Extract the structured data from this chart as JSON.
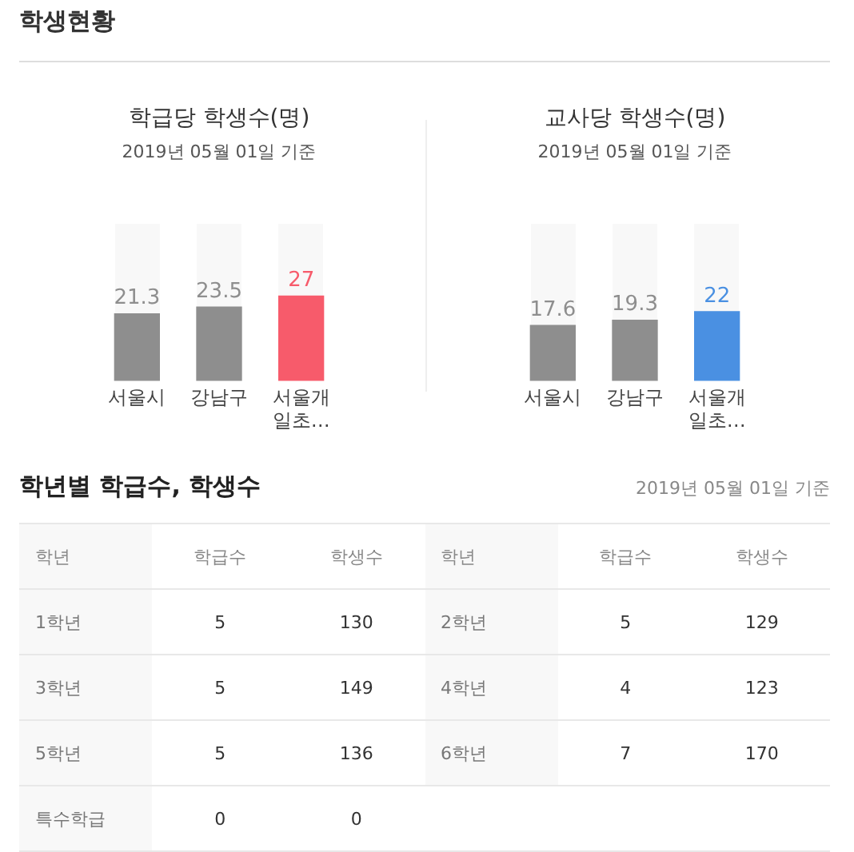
{
  "chart_data": [
    {
      "type": "other",
      "title": "학생현황"
    },
    {
      "type": "bar",
      "title": "학급당 학생수(명)",
      "subtitle": "2019년 05월 01일 기준",
      "categories": [
        "서울시",
        "강남구",
        "서울개일초…"
      ],
      "values": [
        21.3,
        23.5,
        27
      ],
      "colors": [
        "#8e8e8e",
        "#8e8e8e",
        "#f75b6b"
      ],
      "ylim": [
        0,
        50
      ],
      "data_labels": true,
      "tick_labels": "x",
      "grid": false,
      "legend": false
    },
    {
      "type": "bar",
      "title": "교사당 학생수(명)",
      "subtitle": "2019년 05월 01일 기준",
      "categories": [
        "서울시",
        "강남구",
        "서울개일초…"
      ],
      "values": [
        17.6,
        19.3,
        22
      ],
      "colors": [
        "#8e8e8e",
        "#8e8e8e",
        "#4a90e2"
      ],
      "ylim": [
        0,
        50
      ],
      "data_labels": true,
      "tick_labels": "x",
      "grid": false,
      "legend": false
    },
    {
      "type": "other",
      "title": "학년별 학급수, 학생수",
      "subtitle": "2019년 05월 01일 기준",
      "categories": [
        "학년",
        "학급수",
        "학생수",
        "학년",
        "학급수",
        "학생수"
      ],
      "cell_labels": [
        [
          "1학년",
          "5",
          "130",
          "2학년",
          "5",
          "129"
        ],
        [
          "3학년",
          "5",
          "149",
          "4학년",
          "4",
          "123"
        ],
        [
          "5학년",
          "5",
          "136",
          "6학년",
          "7",
          "170"
        ],
        [
          "특수학급",
          "0",
          "0",
          null,
          null,
          null
        ]
      ]
    }
  ]
}
